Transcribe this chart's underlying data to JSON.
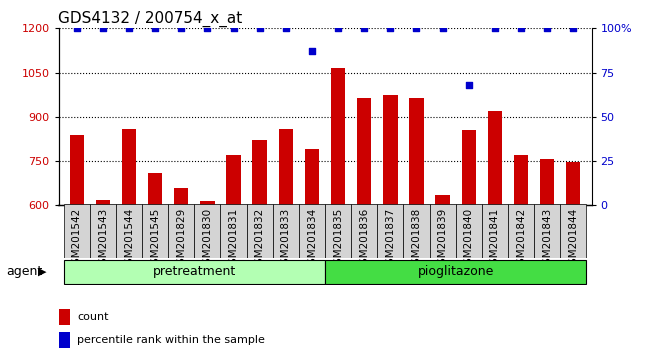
{
  "title": "GDS4132 / 200754_x_at",
  "samples": [
    "GSM201542",
    "GSM201543",
    "GSM201544",
    "GSM201545",
    "GSM201829",
    "GSM201830",
    "GSM201831",
    "GSM201832",
    "GSM201833",
    "GSM201834",
    "GSM201835",
    "GSM201836",
    "GSM201837",
    "GSM201838",
    "GSM201839",
    "GSM201840",
    "GSM201841",
    "GSM201842",
    "GSM201843",
    "GSM201844"
  ],
  "counts": [
    840,
    618,
    858,
    710,
    660,
    615,
    770,
    820,
    860,
    790,
    1065,
    965,
    975,
    965,
    635,
    855,
    920,
    770,
    758,
    748
  ],
  "percentile_rank": [
    100,
    100,
    100,
    100,
    100,
    100,
    100,
    100,
    100,
    87,
    100,
    100,
    100,
    100,
    100,
    68,
    100,
    100,
    100,
    100
  ],
  "pretreatment_count": 10,
  "pioglitazone_count": 10,
  "ymin": 600,
  "ymax": 1200,
  "ylim_right": [
    0,
    100
  ],
  "yticks_left": [
    600,
    750,
    900,
    1050,
    1200
  ],
  "yticks_right": [
    0,
    25,
    50,
    75,
    100
  ],
  "bar_color": "#cc0000",
  "dot_color": "#0000cc",
  "pretreatment_color": "#b3ffb3",
  "pioglitazone_color": "#44dd44",
  "agent_label": "agent",
  "pretreatment_label": "pretreatment",
  "pioglitazone_label": "pioglitazone",
  "legend_count_label": "count",
  "legend_pct_label": "percentile rank within the sample",
  "title_fontsize": 11,
  "tick_label_fontsize": 7.5,
  "group_label_fontsize": 9
}
